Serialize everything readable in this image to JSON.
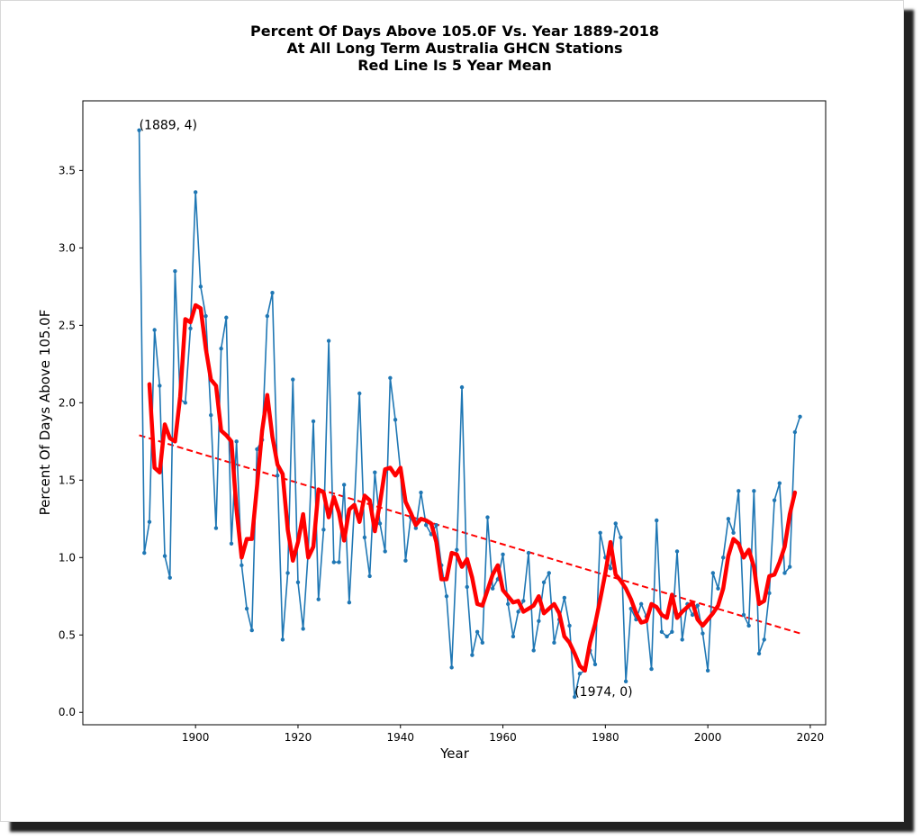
{
  "chart_data": {
    "type": "line",
    "title": [
      "Percent Of Days Above 105.0F Vs. Year 1889-2018",
      "At All Long Term Australia GHCN Stations",
      "Red Line Is 5 Year Mean"
    ],
    "xlabel": "Year",
    "ylabel": "Percent Of Days Above 105.0F",
    "xlim": [
      1878,
      2023
    ],
    "ylim": [
      -0.08,
      3.95
    ],
    "xticks": [
      1900,
      1920,
      1940,
      1960,
      1980,
      2000,
      2020
    ],
    "yticks": [
      0.0,
      0.5,
      1.0,
      1.5,
      2.0,
      2.5,
      3.0,
      3.5
    ],
    "grid": false,
    "colors": {
      "annual": "#1f77b4",
      "mean": "#ff0000",
      "trend": "#ff0000"
    },
    "series": [
      {
        "x_start": 1889,
        "y": [
          3.76,
          1.03,
          1.23,
          2.47,
          2.11,
          1.01,
          0.87,
          2.85,
          2.02,
          2.0,
          2.48,
          3.36,
          2.75,
          2.56,
          1.92,
          1.19,
          2.35,
          2.55,
          1.09,
          1.75,
          0.95,
          0.67,
          0.53,
          1.7,
          1.76,
          2.56,
          2.71,
          1.53,
          0.47,
          0.9,
          2.15,
          0.84,
          0.54,
          1.04,
          1.88,
          0.73,
          1.18,
          2.4,
          0.97,
          0.97,
          1.47,
          0.71,
          1.33,
          2.06,
          1.13,
          0.88,
          1.55,
          1.22,
          1.04,
          2.16,
          1.89,
          1.56,
          0.98,
          1.26,
          1.19,
          1.42,
          1.21,
          1.15,
          1.21,
          0.95,
          0.75,
          0.29,
          1.05,
          2.1,
          0.81,
          0.37,
          0.52,
          0.45,
          1.26,
          0.8,
          0.86,
          1.02,
          0.7,
          0.49,
          0.65,
          0.72,
          1.03,
          0.4,
          0.59,
          0.84,
          0.9,
          0.45,
          0.6,
          0.74,
          0.56,
          0.1,
          0.25,
          0.27,
          0.4,
          0.31,
          1.16,
          1.0,
          0.93,
          1.22,
          1.13,
          0.2,
          0.67,
          0.6,
          0.7,
          0.62,
          0.28,
          1.24,
          0.52,
          0.49,
          0.52,
          1.04,
          0.47,
          0.7,
          0.63,
          0.69,
          0.51,
          0.27,
          0.9,
          0.8,
          1.0,
          1.25,
          1.16,
          1.43,
          0.63,
          0.56,
          1.43,
          0.38,
          0.47,
          0.77,
          1.37,
          1.48,
          0.9,
          0.94,
          1.81,
          1.91
        ]
      },
      {
        "x_start": 1891,
        "y": [
          2.12,
          1.58,
          1.55,
          1.86,
          1.77,
          1.75,
          2.04,
          2.54,
          2.52,
          2.63,
          2.61,
          2.35,
          2.15,
          2.11,
          1.82,
          1.79,
          1.75,
          1.31,
          1.0,
          1.12,
          1.12,
          1.46,
          1.82,
          2.05,
          1.78,
          1.6,
          1.54,
          1.18,
          0.98,
          1.1,
          1.28,
          1.0,
          1.07,
          1.44,
          1.42,
          1.26,
          1.39,
          1.29,
          1.11,
          1.31,
          1.34,
          1.23,
          1.4,
          1.37,
          1.17,
          1.35,
          1.57,
          1.58,
          1.53,
          1.58,
          1.36,
          1.29,
          1.21,
          1.25,
          1.24,
          1.22,
          1.1,
          0.86,
          0.86,
          1.03,
          1.02,
          0.94,
          0.99,
          0.87,
          0.7,
          0.69,
          0.79,
          0.89,
          0.95,
          0.79,
          0.75,
          0.71,
          0.72,
          0.65,
          0.67,
          0.69,
          0.75,
          0.64,
          0.67,
          0.7,
          0.64,
          0.49,
          0.45,
          0.38,
          0.3,
          0.27,
          0.45,
          0.57,
          0.73,
          0.9,
          1.1,
          0.89,
          0.85,
          0.8,
          0.73,
          0.64,
          0.58,
          0.59,
          0.7,
          0.68,
          0.63,
          0.61,
          0.76,
          0.61,
          0.65,
          0.68,
          0.71,
          0.6,
          0.56,
          0.6,
          0.64,
          0.69,
          0.8,
          1.01,
          1.12,
          1.09,
          1.0,
          1.05,
          0.94,
          0.7,
          0.72,
          0.88,
          0.89,
          0.97,
          1.07,
          1.28,
          1.42
        ]
      },
      {
        "x": [
          1889,
          2018
        ],
        "y": [
          1.79,
          0.51
        ]
      }
    ],
    "annotations": [
      {
        "text": "(1889, 4)",
        "x": 1889,
        "y": 3.76
      },
      {
        "text": "(1974, 0)",
        "x": 1974,
        "y": 0.1
      }
    ]
  }
}
